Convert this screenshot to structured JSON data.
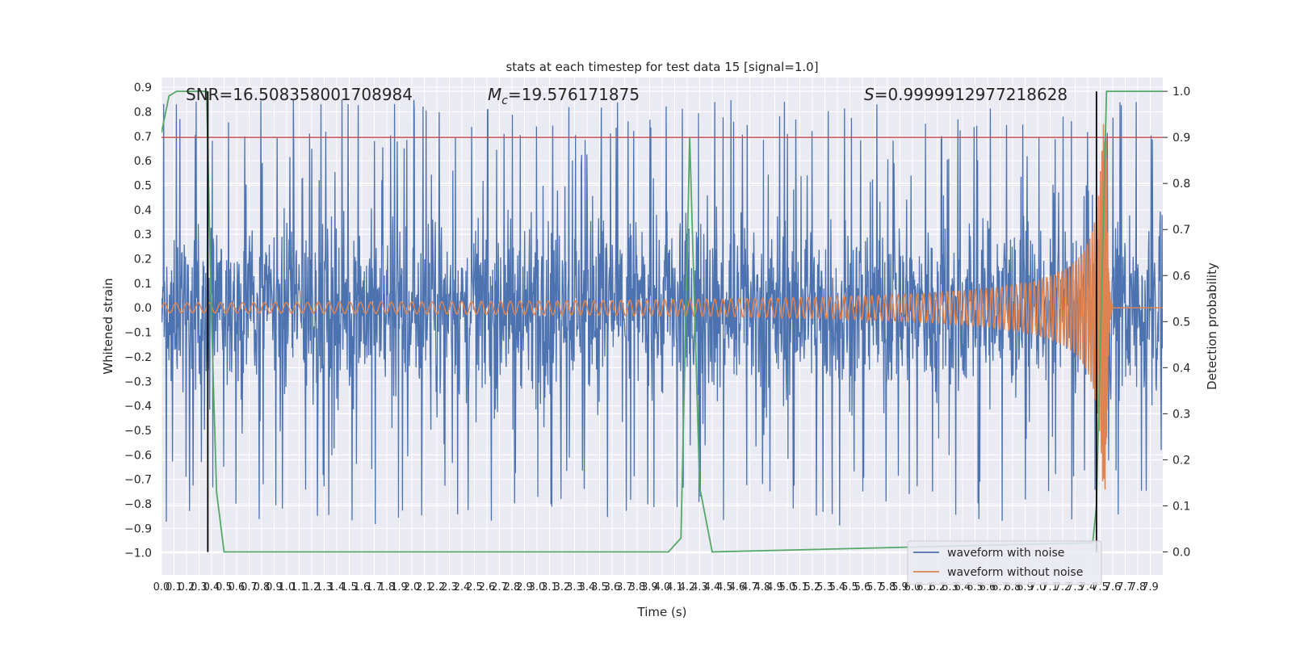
{
  "chart_data": {
    "type": "line",
    "title": "stats at each timestep for test data 15 [signal=1.0]",
    "xlabel": "Time (s)",
    "ylabel": "Whitened strain",
    "y2label": "Detection probability",
    "xlim": [
      0.0,
      8.0
    ],
    "ylim": [
      -1.09,
      0.94
    ],
    "y2lim": [
      -0.05,
      1.03
    ],
    "grid": true,
    "x_ticks": [
      "0.0",
      "0.1",
      "0.2",
      "0.3",
      "0.4",
      "0.5",
      "0.6",
      "0.7",
      "0.8",
      "0.9",
      "1.0",
      "1.1",
      "1.2",
      "1.3",
      "1.4",
      "1.5",
      "1.6",
      "1.7",
      "1.8",
      "1.9",
      "2.0",
      "2.1",
      "2.2",
      "2.3",
      "2.4",
      "2.5",
      "2.6",
      "2.7",
      "2.8",
      "2.9",
      "3.0",
      "3.1",
      "3.2",
      "3.3",
      "3.4",
      "3.5",
      "3.6",
      "3.7",
      "3.8",
      "3.9",
      "4.0",
      "4.1",
      "4.2",
      "4.3",
      "4.4",
      "4.5",
      "4.6",
      "4.7",
      "4.8",
      "4.9",
      "5.0",
      "5.1",
      "5.2",
      "5.3",
      "5.4",
      "5.5",
      "5.6",
      "5.7",
      "5.8",
      "5.9",
      "6.0",
      "6.1",
      "6.2",
      "6.3",
      "6.4",
      "6.5",
      "6.6",
      "6.7",
      "6.8",
      "6.9",
      "7.0",
      "7.1",
      "7.2",
      "7.3",
      "7.4",
      "7.5",
      "7.6",
      "7.7",
      "7.8",
      "7.9"
    ],
    "y_ticks": [
      "0.9",
      "0.8",
      "0.7",
      "0.6",
      "0.5",
      "0.4",
      "0.3",
      "0.2",
      "0.1",
      "0.0",
      "−0.1",
      "−0.2",
      "−0.3",
      "−0.4",
      "−0.5",
      "−0.6",
      "−0.7",
      "−0.8",
      "−0.9",
      "−1.0"
    ],
    "y2_ticks": [
      "1.0",
      "0.9",
      "0.8",
      "0.7",
      "0.6",
      "0.5",
      "0.4",
      "0.3",
      "0.2",
      "0.1",
      "0.0"
    ],
    "annotations": {
      "snr": "SNR=16.508358001708984",
      "mc_symbol": "M",
      "mc_sub": "c",
      "mc_value": "=19.576171875",
      "s_symbol": "S",
      "s_value": "=0.9999912977218628"
    },
    "series": [
      {
        "name": "waveform with noise",
        "color": "#4c72b0",
        "kind": "noise",
        "amplitude_core": 0.3,
        "peak_range": [
          -0.89,
          0.85
        ]
      },
      {
        "name": "waveform without noise",
        "color": "#dd8452",
        "kind": "chirp",
        "start_amp": 0.02,
        "merger_time": 7.55,
        "merger_amp": 0.75
      }
    ],
    "detection_probability": {
      "color": "#55a868",
      "axis": "y2",
      "t": [
        0.0,
        0.06,
        0.12,
        0.25,
        0.36,
        0.4,
        0.44,
        0.5,
        4.05,
        4.15,
        4.22,
        4.3,
        4.4,
        7.44,
        7.47,
        7.55,
        8.0
      ],
      "p": [
        0.91,
        0.99,
        1.0,
        1.0,
        1.0,
        0.5,
        0.13,
        0.0,
        0.0,
        0.03,
        0.9,
        0.14,
        0.0,
        0.02,
        0.1,
        1.0,
        1.0
      ]
    },
    "threshold": {
      "y2": 0.9,
      "color": "#c44e52"
    },
    "vertical_markers": {
      "t": [
        0.37,
        7.47
      ],
      "color": "#000000"
    },
    "legend": {
      "position": "lower-right",
      "entries": [
        {
          "label": "waveform with noise",
          "color": "#4c72b0"
        },
        {
          "label": "waveform without noise",
          "color": "#dd8452"
        }
      ]
    }
  }
}
